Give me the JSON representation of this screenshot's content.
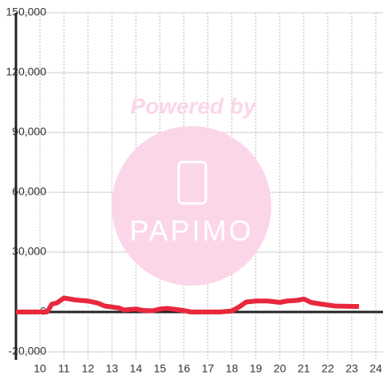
{
  "chart_data": {
    "type": "line",
    "x": [
      9,
      10.3,
      10.5,
      10.7,
      11,
      11.5,
      12,
      12.4,
      12.7,
      13,
      13.3,
      13.5,
      14,
      14.3,
      14.7,
      15,
      15.3,
      15.7,
      16,
      16.3,
      17,
      17.5,
      18,
      18.3,
      18.6,
      19,
      19.5,
      20,
      20.3,
      20.7,
      21,
      21.3,
      21.7,
      22,
      22.3,
      23,
      23.3
    ],
    "series": [
      {
        "color": "#e8283c",
        "values": [
          0,
          0,
          4000,
          4500,
          7000,
          6000,
          5500,
          4500,
          3000,
          2500,
          2000,
          1000,
          1500,
          800,
          600,
          1500,
          1800,
          1200,
          700,
          0,
          0,
          0,
          500,
          2500,
          5000,
          5500,
          5500,
          4800,
          5500,
          5800,
          6500,
          4800,
          4000,
          3500,
          3000,
          2800,
          2800
        ]
      }
    ],
    "xlim": [
      9,
      24.3
    ],
    "xticks": [
      10,
      11,
      12,
      13,
      14,
      15,
      16,
      17,
      18,
      19,
      20,
      21,
      22,
      23,
      24
    ],
    "ylim": [
      -24000,
      150000
    ],
    "yticks": [
      {
        "value": -20000,
        "label": "-20,000"
      },
      0,
      {
        "value": 30000,
        "label": "30,000"
      },
      {
        "value": 60000,
        "label": "60,000"
      },
      {
        "value": 90000,
        "label": "90,000"
      },
      {
        "value": 120000,
        "label": "120,000"
      },
      {
        "value": 150000,
        "label": "150,000"
      }
    ],
    "grid": true,
    "watermark": {
      "title": "Powered by",
      "logo": "PAPIMO"
    }
  }
}
